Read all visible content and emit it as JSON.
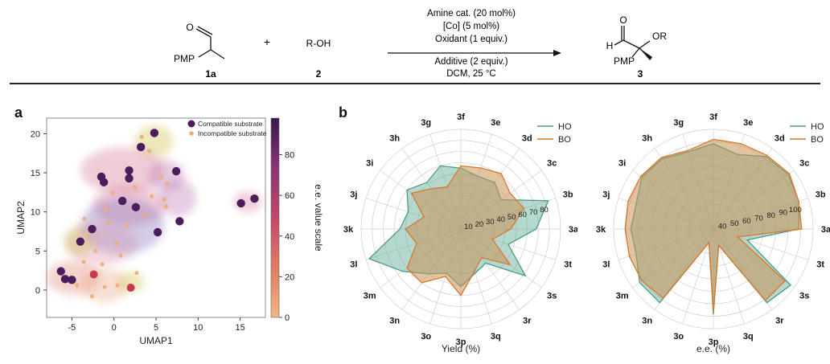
{
  "scheme": {
    "reactant1_pmp": "PMP",
    "reactant1_o": "O",
    "reactant1_id": "1a",
    "plus": "+",
    "reactant2": "R-OH",
    "reactant2_id": "2",
    "conditions_above": [
      "Amine cat. (20 mol%)",
      "[Co] (5 mol%)",
      "Oxidant (1 equiv.)"
    ],
    "conditions_below": [
      "Additive (2 equiv.)",
      "DCM, 25 °C"
    ],
    "product_o": "O",
    "product_h": "H",
    "product_or": "OR",
    "product_pmp": "PMP",
    "product_id": "3"
  },
  "panel_a_label": "a",
  "panel_b_label": "b",
  "chart_data": [
    {
      "type": "scatter",
      "xlabel": "UMAP1",
      "ylabel": "UMAP2",
      "xlim": [
        -8,
        18
      ],
      "ylim": [
        -3.5,
        22
      ],
      "xticks": [
        "-5",
        "0",
        "5",
        "10",
        "15"
      ],
      "yticks": [
        "0",
        "5",
        "10",
        "15",
        "20"
      ],
      "colorbar_label": "e.e. value scale",
      "colorbar_ticks": [
        "0",
        "20",
        "40",
        "60",
        "80"
      ],
      "colorbar_range": [
        0,
        98
      ],
      "legend": [
        "Compatible substrate",
        "Incompatible substrate"
      ],
      "colors": {
        "compatible": "#4b1d5c",
        "incompatible": "#eab07a",
        "red": "#c83a4e"
      },
      "compatible_points": [
        {
          "x": 4.8,
          "y": 20.1
        },
        {
          "x": 3.2,
          "y": 18.3
        },
        {
          "x": -1.5,
          "y": 14.5
        },
        {
          "x": -1.2,
          "y": 13.8
        },
        {
          "x": 1.8,
          "y": 15.3
        },
        {
          "x": 1.8,
          "y": 14.3
        },
        {
          "x": 7.4,
          "y": 15.2
        },
        {
          "x": 1.0,
          "y": 11.4
        },
        {
          "x": 2.6,
          "y": 10.6
        },
        {
          "x": 7.8,
          "y": 8.8
        },
        {
          "x": 5.2,
          "y": 7.4
        },
        {
          "x": -2.6,
          "y": 7.8
        },
        {
          "x": -4.0,
          "y": 6.2
        },
        {
          "x": -6.3,
          "y": 2.4
        },
        {
          "x": -5.8,
          "y": 1.4
        },
        {
          "x": -5.0,
          "y": 1.3
        },
        {
          "x": 15.1,
          "y": 11.1
        },
        {
          "x": 16.7,
          "y": 11.7
        }
      ],
      "red_points": [
        {
          "x": -2.4,
          "y": 2.0
        },
        {
          "x": 2.0,
          "y": 0.3
        }
      ],
      "incompatible_points": [
        {
          "x": 3.3,
          "y": 19.6
        },
        {
          "x": 4.2,
          "y": 17.8
        },
        {
          "x": 5.6,
          "y": 14.4
        },
        {
          "x": 6.3,
          "y": 13.6
        },
        {
          "x": 2.5,
          "y": 13.2
        },
        {
          "x": -0.2,
          "y": 12.4
        },
        {
          "x": 4.5,
          "y": 12.0
        },
        {
          "x": -1.0,
          "y": 10.3
        },
        {
          "x": 3.6,
          "y": 9.6
        },
        {
          "x": -0.7,
          "y": 8.6
        },
        {
          "x": 1.6,
          "y": 8.3
        },
        {
          "x": 6.2,
          "y": 10.7
        },
        {
          "x": -3.5,
          "y": 9.1
        },
        {
          "x": -2.2,
          "y": 5.0
        },
        {
          "x": 0.3,
          "y": 6.0
        },
        {
          "x": 0.8,
          "y": 4.4
        },
        {
          "x": -1.4,
          "y": 3.3
        },
        {
          "x": -3.6,
          "y": 3.6
        },
        {
          "x": -4.4,
          "y": 0.6
        },
        {
          "x": -1.1,
          "y": 0.4
        },
        {
          "x": 0.4,
          "y": 0.6
        },
        {
          "x": -2.6,
          "y": -0.8
        },
        {
          "x": 2.7,
          "y": 2.2
        },
        {
          "x": 6.0,
          "y": 11.6
        }
      ],
      "clusters": [
        {
          "x": 4.8,
          "y": 19.0,
          "rx": 2.3,
          "ry": 2.1,
          "color": "#c9b838"
        },
        {
          "x": 1.0,
          "y": 15.3,
          "rx": 5.0,
          "ry": 3.0,
          "color": "#d06a8c"
        },
        {
          "x": 6.2,
          "y": 14.6,
          "rx": 2.2,
          "ry": 2.0,
          "color": "#b56aa9"
        },
        {
          "x": 1.8,
          "y": 10.8,
          "rx": 4.4,
          "ry": 2.6,
          "color": "#d06a8c"
        },
        {
          "x": 7.6,
          "y": 11.8,
          "rx": 2.2,
          "ry": 2.4,
          "color": "#b56aa9"
        },
        {
          "x": 1.0,
          "y": 8.2,
          "rx": 5.0,
          "ry": 3.6,
          "color": "#7a67b8"
        },
        {
          "x": -1.4,
          "y": 6.0,
          "rx": 4.2,
          "ry": 2.8,
          "color": "#d88aa4"
        },
        {
          "x": -4.2,
          "y": 6.2,
          "rx": 1.8,
          "ry": 1.8,
          "color": "#c9b838"
        },
        {
          "x": -4.8,
          "y": 1.6,
          "rx": 3.2,
          "ry": 2.2,
          "color": "#e07a6a"
        },
        {
          "x": -1.2,
          "y": 0.6,
          "rx": 2.8,
          "ry": 2.2,
          "color": "#e8a07a"
        },
        {
          "x": 2.0,
          "y": 1.0,
          "rx": 1.6,
          "ry": 1.4,
          "color": "#c9b838"
        },
        {
          "x": 15.9,
          "y": 11.3,
          "rx": 1.7,
          "ry": 1.3,
          "color": "#d06a8c"
        }
      ]
    },
    {
      "type": "radar",
      "title": "Yield (%)",
      "axes": [
        "3f",
        "3e",
        "3d",
        "3c",
        "3b",
        "3a",
        "3t",
        "3s",
        "3r",
        "3q",
        "3p",
        "3o",
        "3n",
        "3m",
        "3l",
        "3k",
        "3j",
        "3i",
        "3h",
        "3g"
      ],
      "rmax": 90,
      "ticks": [
        "10",
        "20",
        "30",
        "40",
        "50",
        "60",
        "70",
        "80"
      ],
      "series": [
        {
          "name": "HO",
          "color": "#4b9c8c",
          "values": [
            55,
            50,
            52,
            45,
            83,
            68,
            45,
            72,
            38,
            42,
            52,
            42,
            50,
            65,
            87,
            55,
            50,
            60,
            52,
            60
          ]
        },
        {
          "name": "BO",
          "color": "#d9772c",
          "values": [
            57,
            58,
            62,
            55,
            60,
            45,
            30,
            55,
            32,
            40,
            60,
            45,
            60,
            60,
            42,
            50,
            35,
            55,
            45,
            40
          ]
        }
      ]
    },
    {
      "type": "radar",
      "title": "e.e. (%)",
      "axes": [
        "3f",
        "3e",
        "3d",
        "3c",
        "3b",
        "3a",
        "3t",
        "3s",
        "3r",
        "3q",
        "3p",
        "3o",
        "3n",
        "3m",
        "3l",
        "3k",
        "3j",
        "3i",
        "3h",
        "3g"
      ],
      "rmin": 30,
      "rmax": 100,
      "ticks": [
        "40",
        "50",
        "60",
        "70",
        "80",
        "90",
        "100"
      ],
      "series": [
        {
          "name": "HO",
          "color": "#4b9c8c",
          "values": [
            90,
            85,
            93,
            95,
            93,
            90,
            55,
            97,
            94,
            42,
            90,
            40,
            94,
            94,
            87,
            88,
            87,
            92,
            91,
            87
          ]
        },
        {
          "name": "BO",
          "color": "#d9772c",
          "values": [
            93,
            93,
            94,
            96,
            93,
            92,
            48,
            92,
            92,
            42,
            88,
            40,
            90,
            92,
            92,
            92,
            93,
            93,
            92,
            88
          ]
        }
      ]
    }
  ]
}
